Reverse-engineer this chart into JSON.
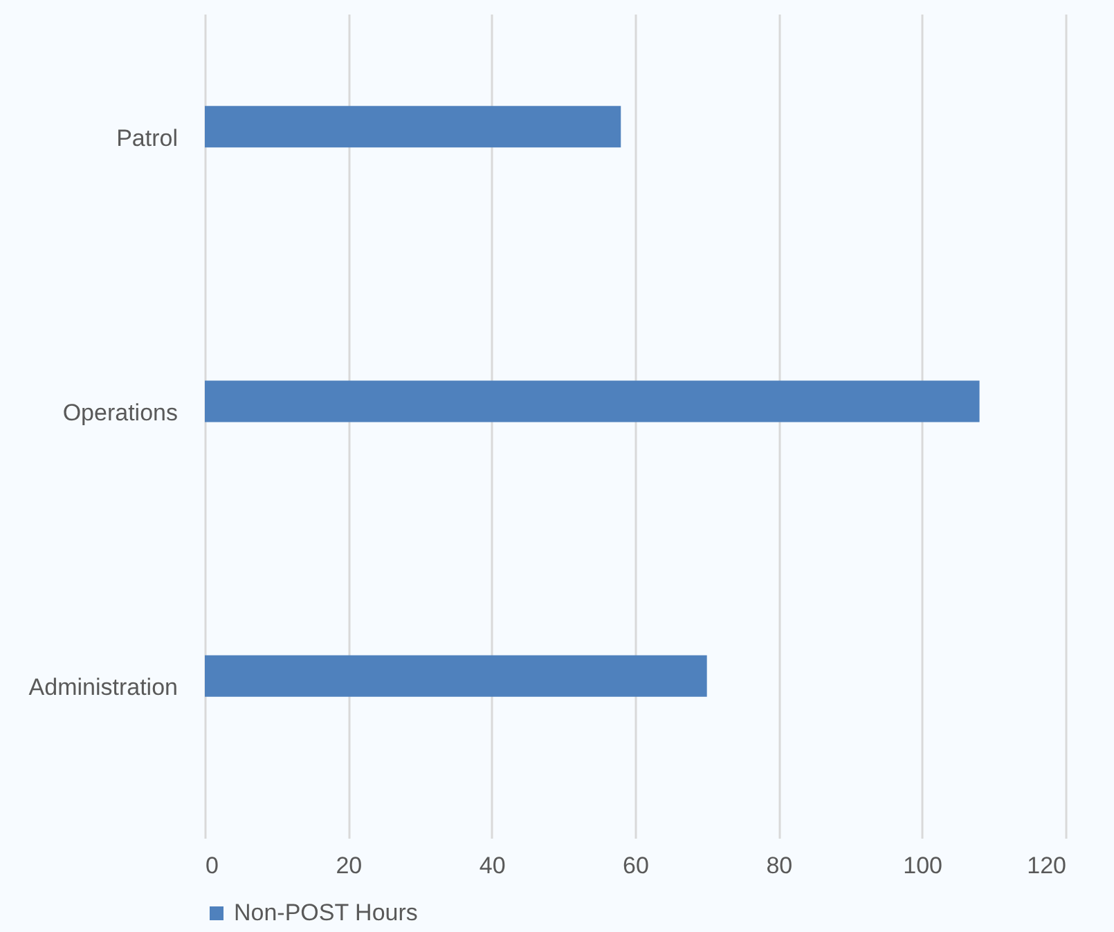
{
  "chart_data": {
    "type": "bar",
    "orientation": "horizontal",
    "categories": [
      "Patrol",
      "Operations",
      "Administration"
    ],
    "series": [
      {
        "name": "Non-POST Hours",
        "color": "#4f81bd",
        "values": [
          58,
          108,
          70
        ]
      }
    ],
    "xlim": [
      0,
      120
    ],
    "xticks": [
      0,
      20,
      40,
      60,
      80,
      100,
      120
    ],
    "grid": "x",
    "legend": "bottom"
  }
}
